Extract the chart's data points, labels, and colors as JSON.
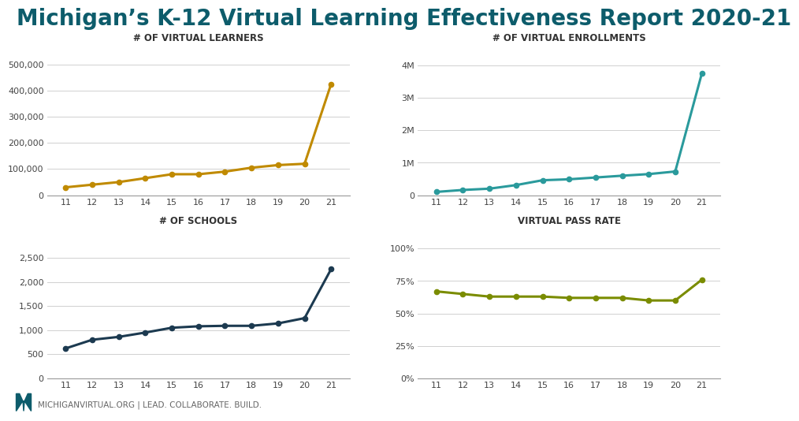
{
  "title": "Michigan’s K-12 Virtual Learning Effectiveness Report 2020-21",
  "title_color": "#0d5c6b",
  "background_color": "#ffffff",
  "x_labels": [
    "11",
    "12",
    "13",
    "14",
    "15",
    "16",
    "17",
    "18",
    "19",
    "20",
    "21"
  ],
  "x_values": [
    11,
    12,
    13,
    14,
    15,
    16,
    17,
    18,
    19,
    20,
    21
  ],
  "charts": [
    {
      "title": "# OF VIRTUAL LEARNERS",
      "color": "#c08a00",
      "values": [
        30000,
        40000,
        50000,
        65000,
        80000,
        80000,
        90000,
        105000,
        115000,
        120000,
        425000
      ],
      "ylim": [
        0,
        570000
      ],
      "yticks": [
        0,
        100000,
        200000,
        300000,
        400000,
        500000
      ],
      "yticklabels": [
        "0",
        "100,000",
        "200,000",
        "300,000",
        "400,000",
        "500,000"
      ]
    },
    {
      "title": "# OF VIRTUAL ENROLLMENTS",
      "color": "#2a9a9c",
      "values": [
        100000,
        160000,
        200000,
        310000,
        460000,
        490000,
        545000,
        600000,
        650000,
        730000,
        3750000
      ],
      "ylim": [
        0,
        4600000
      ],
      "yticks": [
        0,
        1000000,
        2000000,
        3000000,
        4000000
      ],
      "yticklabels": [
        "0",
        "1M",
        "2M",
        "3M",
        "4M"
      ]
    },
    {
      "title": "# OF SCHOOLS",
      "color": "#1c3a50",
      "values": [
        620,
        800,
        860,
        950,
        1050,
        1080,
        1090,
        1090,
        1140,
        1250,
        2270
      ],
      "ylim": [
        0,
        3100
      ],
      "yticks": [
        0,
        500,
        1000,
        1500,
        2000,
        2500
      ],
      "yticklabels": [
        "0",
        "500",
        "1,000",
        "1,500",
        "2,000",
        "2,500"
      ]
    },
    {
      "title": "VIRTUAL PASS RATE",
      "color": "#7a8c00",
      "values": [
        0.67,
        0.65,
        0.63,
        0.63,
        0.63,
        0.62,
        0.62,
        0.62,
        0.6,
        0.6,
        0.76
      ],
      "ylim": [
        0,
        1.15
      ],
      "yticks": [
        0,
        0.25,
        0.5,
        0.75,
        1.0
      ],
      "yticklabels": [
        "0%",
        "25%",
        "50%",
        "75%",
        "100%"
      ]
    }
  ],
  "footer_text": "MICHIGANVIRTUAL.ORG | LEAD. COLLABORATE. BUILD.",
  "footer_color": "#666666",
  "logo_color": "#0d5c6b"
}
